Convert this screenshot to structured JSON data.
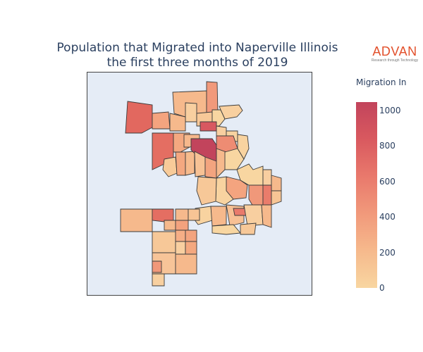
{
  "title": {
    "line1": "Population that Migrated into Naperville Illinois",
    "line2": "the first three months of 2019"
  },
  "logo": {
    "brand": "ADVAN",
    "tagline": "Research through Technology"
  },
  "legend": {
    "title": "Migration In",
    "ticks": [
      "0",
      "200",
      "400",
      "600",
      "800",
      "1000"
    ],
    "range": [
      0,
      1100
    ],
    "colors": [
      "#f8d6a1",
      "#f6b98c",
      "#f1997b",
      "#e9796c",
      "#d9595f",
      "#c2445c"
    ]
  },
  "map": {
    "background": "#e5ecf6",
    "border_color": "#3b3b3b",
    "fill_scale": "sunsetdark (reversed) colorscale"
  }
}
